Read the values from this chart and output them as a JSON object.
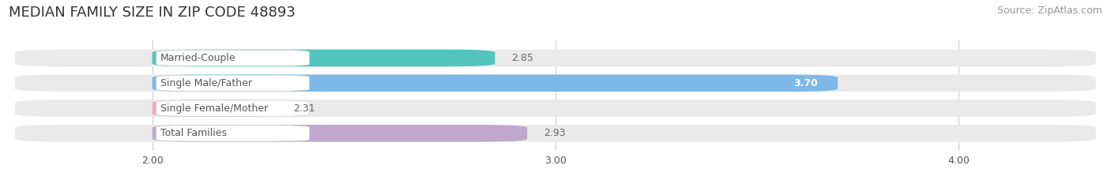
{
  "title": "MEDIAN FAMILY SIZE IN ZIP CODE 48893",
  "source": "Source: ZipAtlas.com",
  "categories": [
    "Married-Couple",
    "Single Male/Father",
    "Single Female/Mother",
    "Total Families"
  ],
  "values": [
    2.85,
    3.7,
    2.31,
    2.93
  ],
  "bar_colors": [
    "#52C5BE",
    "#7CB8E8",
    "#F4A8C0",
    "#C0A8CC"
  ],
  "bar_bg_color": "#EAEAEA",
  "label_bg_color": "#FFFFFF",
  "xlim_left": 1.65,
  "xlim_right": 4.35,
  "xdata_min": 2.0,
  "xdata_max": 4.0,
  "xticks": [
    2.0,
    3.0,
    4.0
  ],
  "xtick_labels": [
    "2.00",
    "3.00",
    "4.00"
  ],
  "label_color": "#555555",
  "value_color_inside": "#FFFFFF",
  "value_color_outside": "#666666",
  "title_fontsize": 13,
  "source_fontsize": 9,
  "label_fontsize": 9,
  "value_fontsize": 9,
  "tick_fontsize": 9,
  "bar_height": 0.68,
  "background_color": "#FFFFFF",
  "grid_color": "#CCCCCC"
}
